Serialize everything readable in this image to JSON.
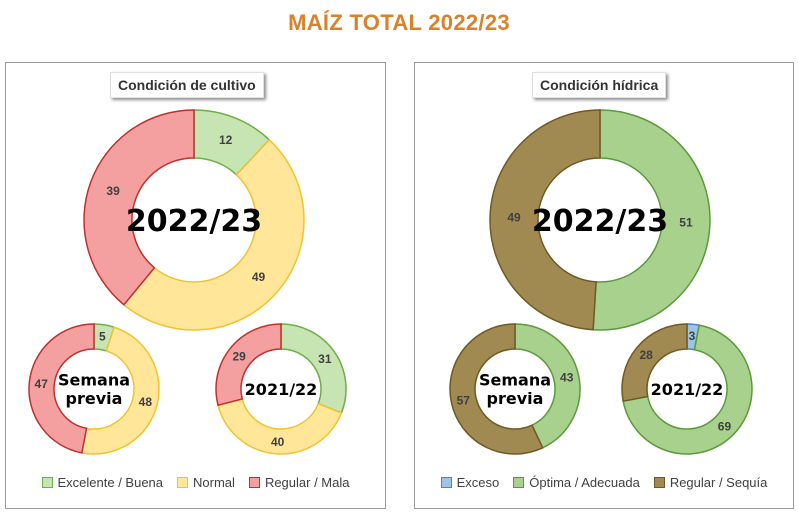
{
  "title": "MAÍZ TOTAL 2022/23",
  "panels": {
    "left": {
      "subtitle": "Condición  de cultivo",
      "legend": [
        {
          "label": "Excelente / Buena",
          "fill": "#c6e5b3",
          "stroke": "#6fae47"
        },
        {
          "label": "Normal",
          "fill": "#ffe699",
          "stroke": "#f2c230"
        },
        {
          "label": "Regular / Mala",
          "fill": "#f4a0a0",
          "stroke": "#c0302e"
        }
      ]
    },
    "right": {
      "subtitle": "Condición  hídrica",
      "legend": [
        {
          "label": "Exceso",
          "fill": "#9dc3e6",
          "stroke": "#4a86c5"
        },
        {
          "label": "Óptima / Adecuada",
          "fill": "#a9d18e",
          "stroke": "#5b9a3a"
        },
        {
          "label": "Regular / Sequía",
          "fill": "#a08a52",
          "stroke": "#6e5a22"
        }
      ]
    }
  },
  "chart_data": [
    {
      "type": "pie",
      "panel": "left",
      "center_label": [
        "2022/23"
      ],
      "categories": [
        "Excelente / Buena",
        "Normal",
        "Regular / Mala"
      ],
      "values": [
        12,
        49,
        39
      ],
      "labels": [
        "12",
        "49",
        "39"
      ]
    },
    {
      "type": "pie",
      "panel": "left",
      "center_label": [
        "Semana",
        "previa"
      ],
      "categories": [
        "Excelente / Buena",
        "Normal",
        "Regular / Mala"
      ],
      "values": [
        5,
        48,
        47
      ],
      "labels": [
        "5",
        "48",
        "47"
      ]
    },
    {
      "type": "pie",
      "panel": "left",
      "center_label": [
        "2021/22"
      ],
      "categories": [
        "Excelente / Buena",
        "Normal",
        "Regular / Mala"
      ],
      "values": [
        31,
        40,
        29
      ],
      "labels": [
        "31",
        "40",
        "29"
      ]
    },
    {
      "type": "pie",
      "panel": "right",
      "center_label": [
        "2022/23"
      ],
      "categories": [
        "Exceso",
        "Óptima / Adecuada",
        "Regular / Sequía"
      ],
      "values": [
        0,
        51,
        49
      ],
      "labels": [
        "-",
        "51",
        "49"
      ]
    },
    {
      "type": "pie",
      "panel": "right",
      "center_label": [
        "Semana",
        "previa"
      ],
      "categories": [
        "Exceso",
        "Óptima / Adecuada",
        "Regular / Sequía"
      ],
      "values": [
        0,
        43,
        57
      ],
      "labels": [
        "-",
        "43",
        "57"
      ]
    },
    {
      "type": "pie",
      "panel": "right",
      "center_label": [
        "2021/22"
      ],
      "categories": [
        "Exceso",
        "Óptima / Adecuada",
        "Regular / Sequía"
      ],
      "values": [
        3,
        69,
        28
      ],
      "labels": [
        "3",
        "69",
        "28"
      ]
    }
  ]
}
